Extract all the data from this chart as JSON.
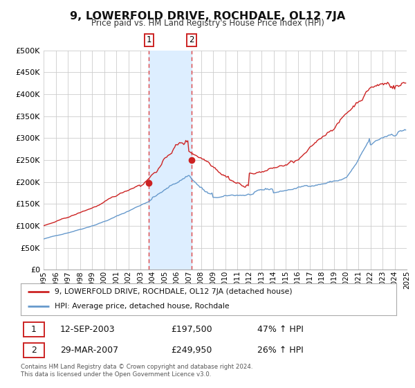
{
  "title": "9, LOWERFOLD DRIVE, ROCHDALE, OL12 7JA",
  "subtitle": "Price paid vs. HM Land Registry's House Price Index (HPI)",
  "legend_line1": "9, LOWERFOLD DRIVE, ROCHDALE, OL12 7JA (detached house)",
  "legend_line2": "HPI: Average price, detached house, Rochdale",
  "transaction1_date": "12-SEP-2003",
  "transaction1_price": "£197,500",
  "transaction1_hpi": "47% ↑ HPI",
  "transaction1_x": 2003.71,
  "transaction1_y": 197500,
  "transaction2_date": "29-MAR-2007",
  "transaction2_price": "£249,950",
  "transaction2_hpi": "26% ↑ HPI",
  "transaction2_x": 2007.24,
  "transaction2_y": 249950,
  "footnote": "Contains HM Land Registry data © Crown copyright and database right 2024.\nThis data is licensed under the Open Government Licence v3.0.",
  "hpi_color": "#6699cc",
  "price_color": "#cc2222",
  "highlight_color": "#ddeeff",
  "dashed_line_color": "#dd4444",
  "background_color": "#ffffff",
  "grid_color": "#cccccc",
  "ylim": [
    0,
    500000
  ],
  "xlim_start": 1995,
  "xlim_end": 2025
}
